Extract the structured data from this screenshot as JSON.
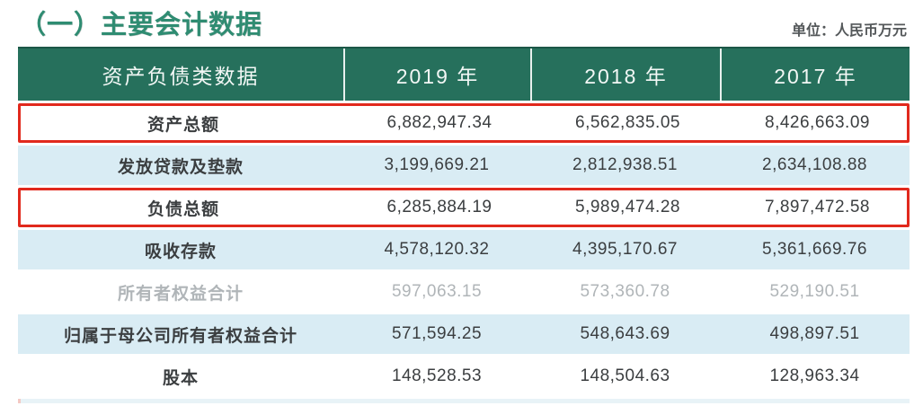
{
  "page": {
    "title": "（一）主要会计数据",
    "unit_label": "单位：人民币万元"
  },
  "table": {
    "header": {
      "col0": "资产负债类数据",
      "col1": "2019 年",
      "col2": "2018 年",
      "col3": "2017 年"
    },
    "rows": [
      {
        "label": "资产总额",
        "values": [
          "6,882,947.34",
          "6,562,835.05",
          "8,426,663.09"
        ],
        "highlighted": true,
        "zebra": "white",
        "muted": false
      },
      {
        "label": "发放贷款及垫款",
        "values": [
          "3,199,669.21",
          "2,812,938.51",
          "2,634,108.88"
        ],
        "highlighted": false,
        "zebra": "blue",
        "muted": false
      },
      {
        "label": "负债总额",
        "values": [
          "6,285,884.19",
          "5,989,474.28",
          "7,897,472.58"
        ],
        "highlighted": true,
        "zebra": "white",
        "muted": false
      },
      {
        "label": "吸收存款",
        "values": [
          "4,578,120.32",
          "4,395,170.67",
          "5,361,669.76"
        ],
        "highlighted": false,
        "zebra": "blue",
        "muted": false
      },
      {
        "label": "所有者权益合计",
        "values": [
          "597,063.15",
          "573,360.78",
          "529,190.51"
        ],
        "highlighted": false,
        "zebra": "white",
        "muted": true
      },
      {
        "label": "归属于母公司所有者权益合计",
        "values": [
          "571,594.25",
          "548,643.69",
          "498,897.51"
        ],
        "highlighted": false,
        "zebra": "blue",
        "muted": false
      },
      {
        "label": "股本",
        "values": [
          "148,528.53",
          "148,504.63",
          "128,963.34"
        ],
        "highlighted": false,
        "zebra": "white",
        "muted": false
      }
    ]
  },
  "colors": {
    "title_green": "#2f8c72",
    "header_green": "#26705c",
    "row_blue": "#d9ecf4",
    "highlight_red": "#e1291d",
    "muted_text": "#b0b5b8",
    "body_text": "#3b3e40"
  }
}
